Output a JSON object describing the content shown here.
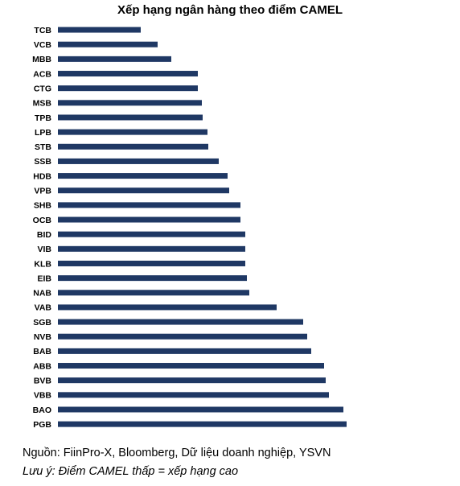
{
  "chart_data": {
    "type": "bar",
    "orientation": "horizontal",
    "title": "Xếp hạng ngân hàng theo điểm CAMEL",
    "xlabel": "",
    "ylabel": "",
    "grid": false,
    "legend": "none",
    "bar_color": "#1f3864",
    "categories": [
      "TCB",
      "VCB",
      "MBB",
      "ACB",
      "CTG",
      "MSB",
      "TPB",
      "LPB",
      "STB",
      "SSB",
      "HDB",
      "VPB",
      "SHB",
      "OCB",
      "BID",
      "VIB",
      "KLB",
      "EIB",
      "NAB",
      "VAB",
      "SGB",
      "NVB",
      "BAB",
      "ABB",
      "BVB",
      "VBB",
      "BAO",
      "PGB"
    ],
    "values": [
      103,
      124,
      141,
      174,
      174,
      179,
      180,
      186,
      187,
      200,
      211,
      213,
      227,
      227,
      233,
      233,
      233,
      235,
      238,
      272,
      305,
      310,
      315,
      331,
      333,
      337,
      355,
      359
    ],
    "xlim": [
      0,
      370
    ]
  },
  "footer": {
    "source": "Nguồn: FiinPro-X, Bloomberg, Dữ liệu doanh nghiệp, YSVN",
    "note": "Lưu ý: Điểm CAMEL thấp = xếp hạng cao"
  }
}
